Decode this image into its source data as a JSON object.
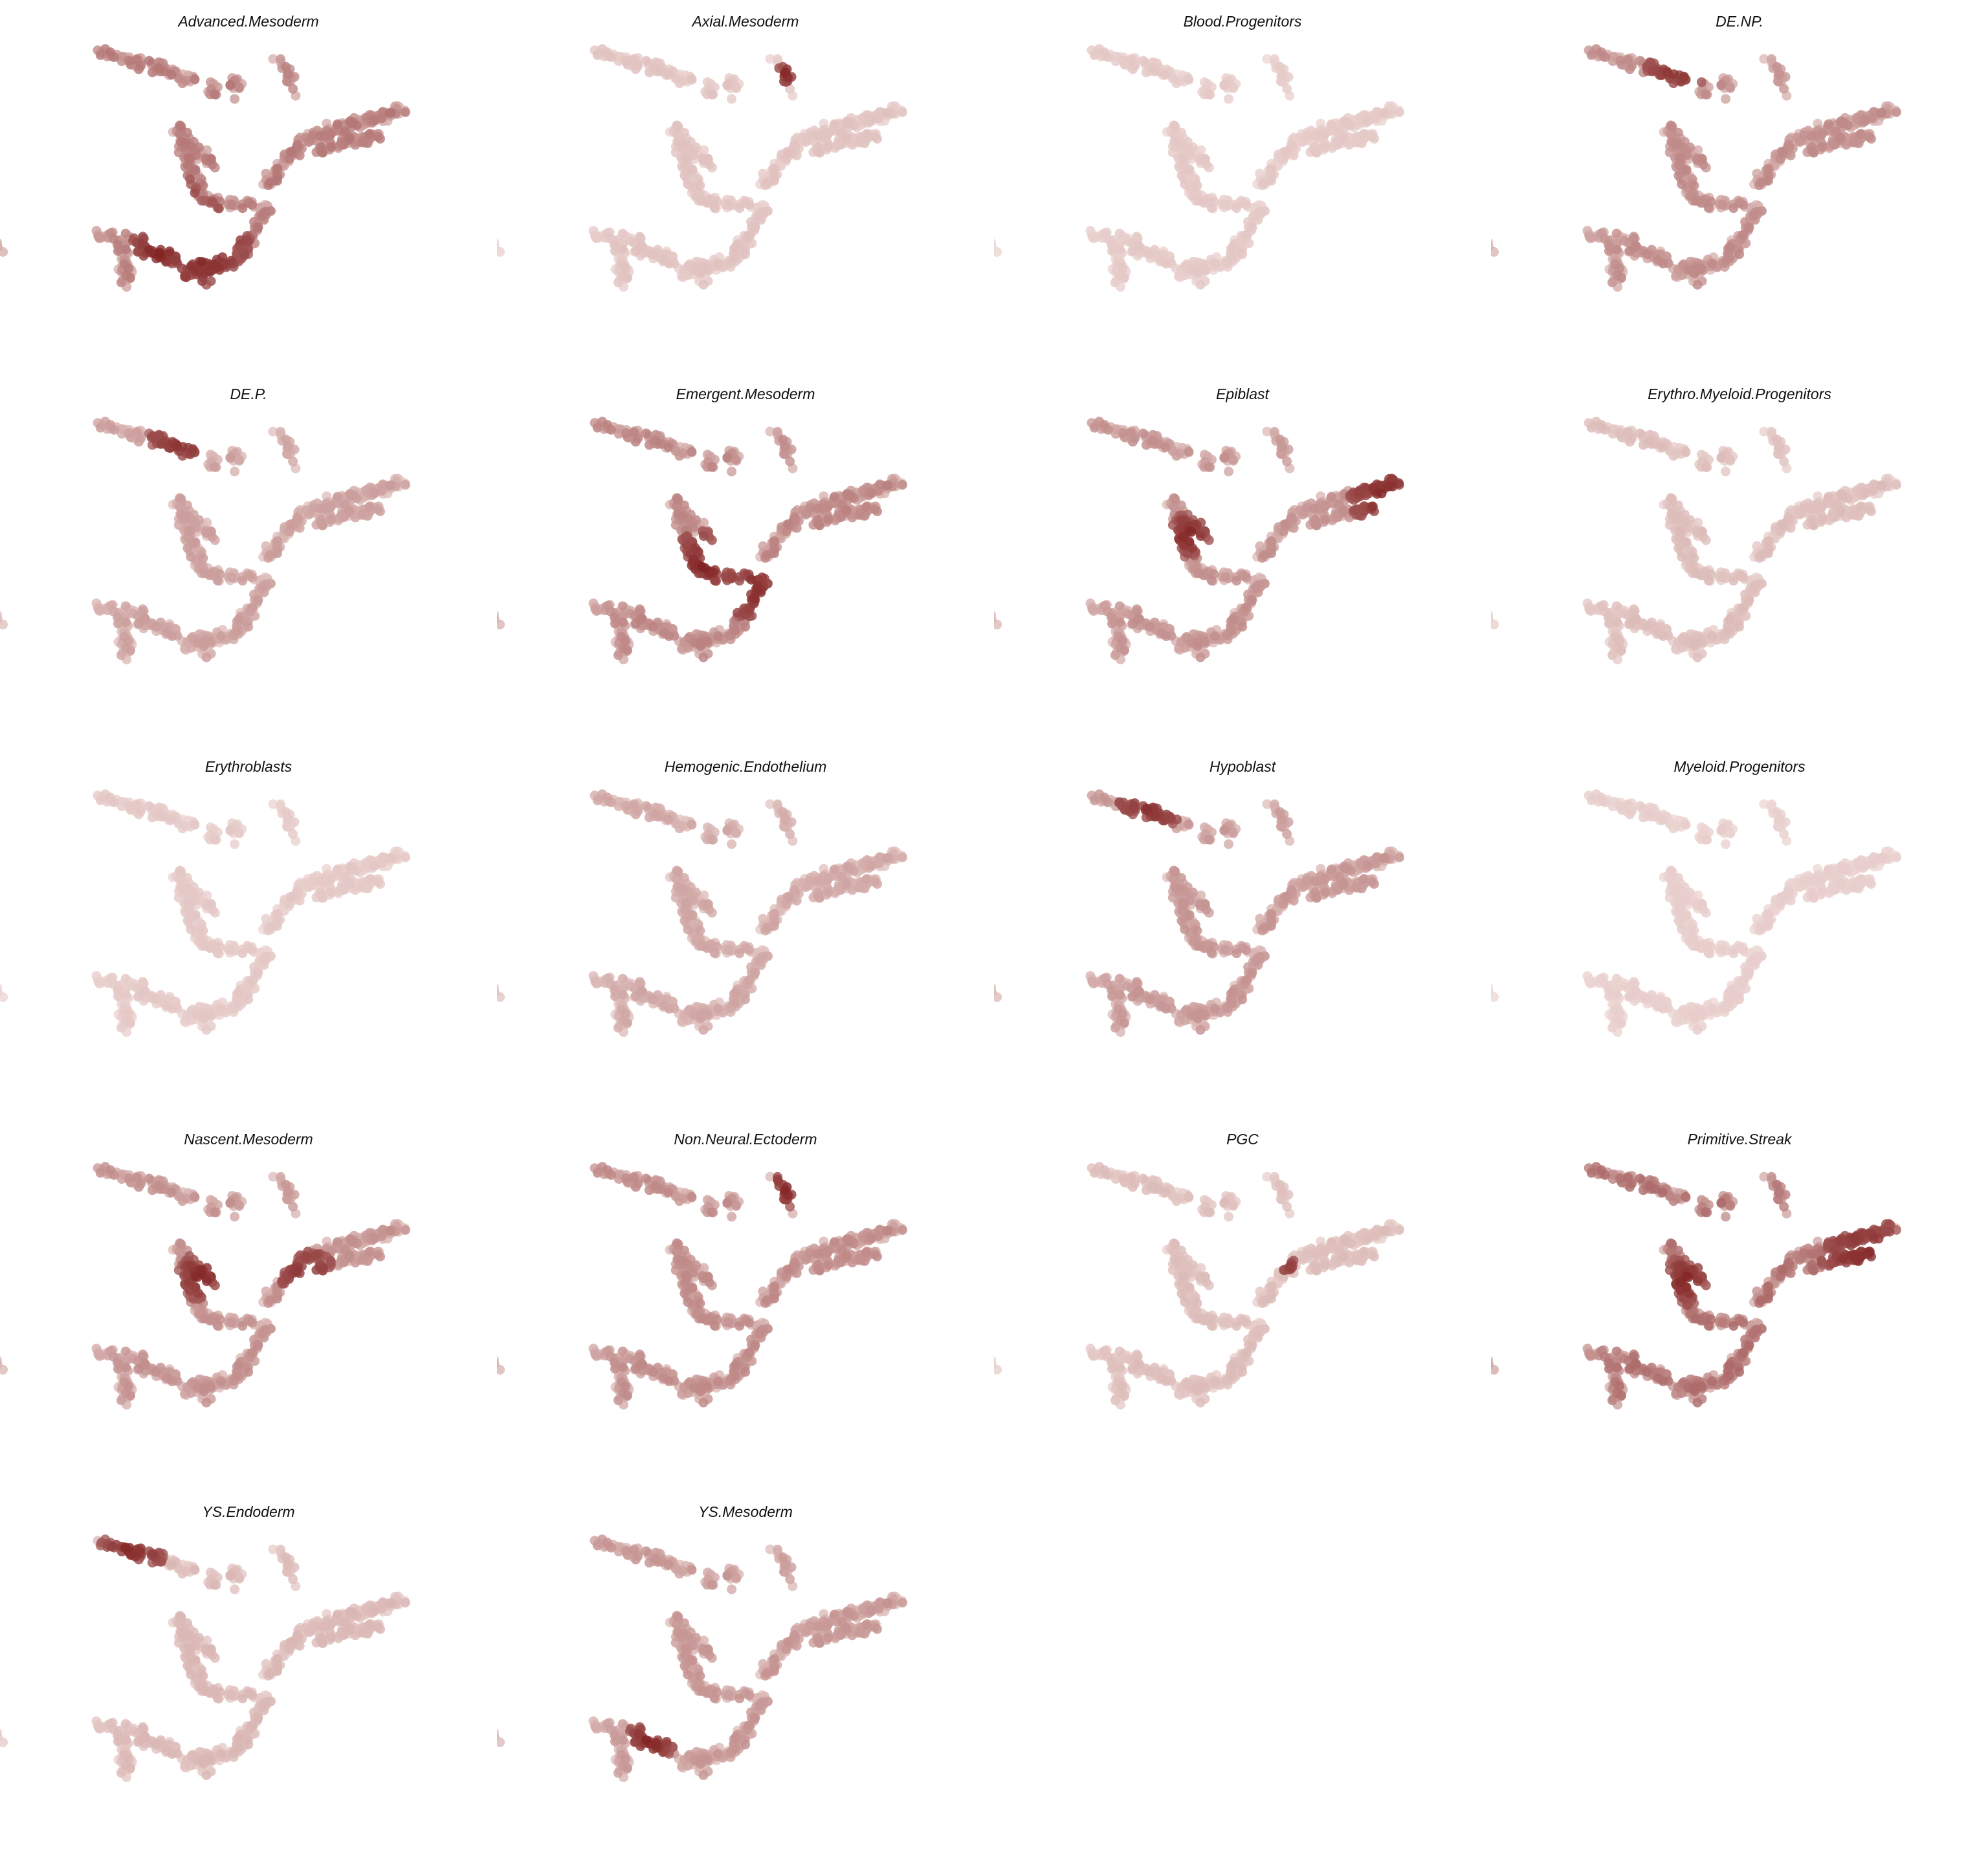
{
  "figure": {
    "type": "faceted-embedding-scatter",
    "color_low": "#f4e4e1",
    "color_high": "#7e1c1c",
    "background": "#ffffff",
    "axes_visible": false
  },
  "chart_data": {
    "type": "scatter",
    "panels": [
      {
        "title": "Advanced.Mesoderm",
        "hot": [
          [
            0.48,
            0.75,
            0.2
          ],
          [
            0.3,
            0.75,
            0.12
          ],
          [
            0.38,
            0.52,
            0.08
          ]
        ],
        "base": 0.38
      },
      {
        "title": "Axial.Mesoderm",
        "hot": [
          [
            0.84,
            0.03,
            0.05
          ]
        ],
        "base": 0.12
      },
      {
        "title": "Blood.Progenitors",
        "hot": [
          [
            -0.55,
            0.37,
            0.09
          ]
        ],
        "base": 0.1
      },
      {
        "title": "DE.NP.",
        "hot": [
          [
            0.42,
            -0.03,
            0.14
          ],
          [
            0.7,
            -0.03,
            0.06
          ]
        ],
        "base": 0.32
      },
      {
        "title": "DE.P.",
        "hot": [
          [
            0.4,
            -0.03,
            0.14
          ]
        ],
        "base": 0.25
      },
      {
        "title": "Emergent.Mesoderm",
        "hot": [
          [
            0.5,
            0.52,
            0.14
          ],
          [
            0.68,
            0.62,
            0.12
          ]
        ],
        "base": 0.34
      },
      {
        "title": "Epiblast",
        "hot": [
          [
            1.25,
            0.25,
            0.15
          ],
          [
            0.45,
            0.4,
            0.09
          ]
        ],
        "base": 0.3
      },
      {
        "title": "Erythro.Myeloid.Progenitors",
        "hot": [
          [
            -0.55,
            0.5,
            0.1
          ]
        ],
        "base": 0.14
      },
      {
        "title": "Erythroblasts",
        "hot": [
          [
            -0.65,
            0.27,
            0.07
          ]
        ],
        "base": 0.1
      },
      {
        "title": "Hemogenic.Endothelium",
        "hot": [
          [
            -0.3,
            0.62,
            0.1
          ]
        ],
        "base": 0.22
      },
      {
        "title": "Hypoblast",
        "hot": [
          [
            0.3,
            -0.05,
            0.14
          ]
        ],
        "base": 0.28
      },
      {
        "title": "Myeloid.Progenitors",
        "hot": [
          [
            -0.6,
            0.57,
            0.05
          ]
        ],
        "base": 0.08
      },
      {
        "title": "Nascent.Mesoderm",
        "hot": [
          [
            0.48,
            0.38,
            0.1
          ],
          [
            0.92,
            0.4,
            0.12
          ]
        ],
        "base": 0.3
      },
      {
        "title": "Non.Neural.Ectoderm",
        "hot": [
          [
            0.84,
            0.02,
            0.08
          ]
        ],
        "base": 0.32
      },
      {
        "title": "PGC",
        "hot": [
          [
            0.6,
            0.4,
            0.03
          ],
          [
            0.85,
            0.33,
            0.03
          ]
        ],
        "base": 0.14
      },
      {
        "title": "Primitive.Streak",
        "hot": [
          [
            1.18,
            0.32,
            0.18
          ],
          [
            0.45,
            0.4,
            0.1
          ]
        ],
        "base": 0.42
      },
      {
        "title": "YS.Endoderm",
        "hot": [
          [
            0.2,
            -0.05,
            0.14
          ]
        ],
        "base": 0.16
      },
      {
        "title": "YS.Mesoderm",
        "hot": [
          [
            0.28,
            0.75,
            0.1
          ]
        ],
        "base": 0.28
      }
    ]
  }
}
